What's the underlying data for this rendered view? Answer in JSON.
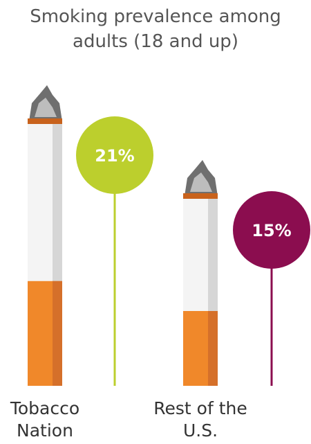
{
  "chart_data": {
    "type": "bar",
    "title": "Smoking prevalence among adults (18 and up)",
    "categories": [
      "Tobacco Nation",
      "Rest of the U.S."
    ],
    "values": [
      21,
      15
    ],
    "value_labels": [
      "21%",
      "15%"
    ],
    "colors": [
      "#bccf2d",
      "#8b0d4f"
    ]
  }
}
